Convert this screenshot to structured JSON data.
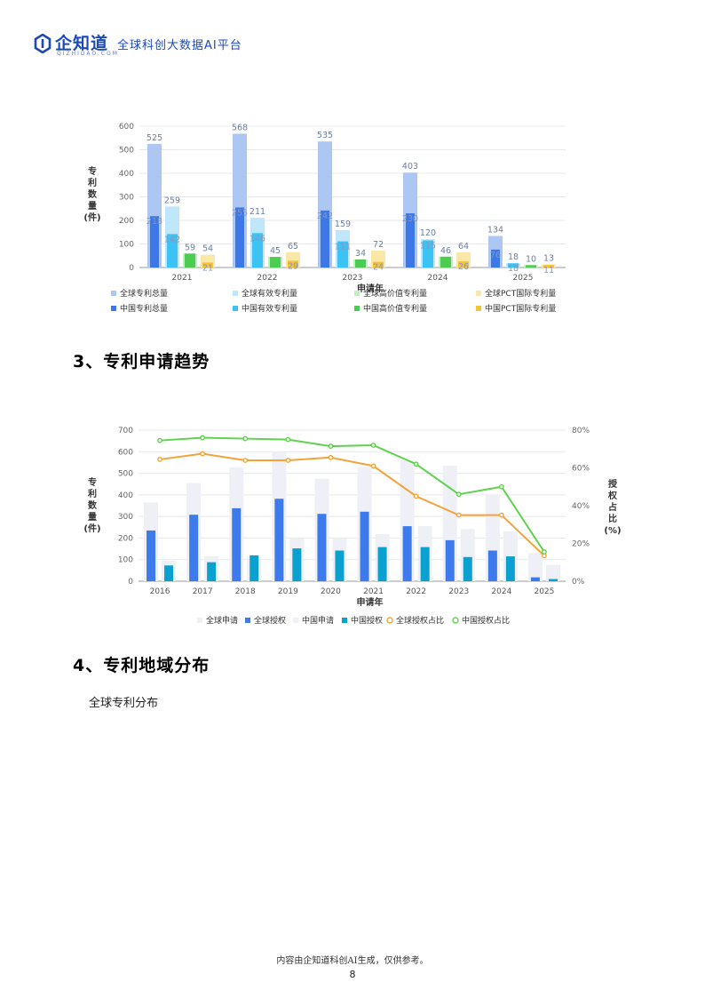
{
  "header": {
    "logo_name": "企知道",
    "logo_sub": "QIZHIDAO.COM",
    "slogan": "全球科创大数据AI平台"
  },
  "sections": {
    "trend_title": "3、专利申请趋势",
    "region_title": "4、专利地域分布",
    "global_subtitle": "全球专利分布"
  },
  "footer": {
    "note": "内容由企知道科创AI生成，仅供参考。",
    "page_number": "8"
  },
  "colors": {
    "global_total": "#adc6f2",
    "cn_total": "#3c78e8",
    "global_valid": "#bfe6fb",
    "cn_valid": "#3cc3f3",
    "global_high": "#c5ecc4",
    "cn_high": "#4ccc50",
    "global_pct": "#fbe7a6",
    "cn_pct": "#f4c33a",
    "grey_bar": "#eef0f5",
    "blue_bar": "#3d7bea",
    "teal_bar": "#0aa0cf",
    "orange_line": "#f4a33a",
    "green_line": "#5fd24f"
  },
  "chart_data": [
    {
      "type": "bar",
      "xlabel": "申请年",
      "ylabel": "专利\n数量\n(件)",
      "ylabel_chars": [
        "专",
        "利",
        "数",
        "量",
        "(件)"
      ],
      "ylim": [
        0,
        600
      ],
      "yticks": [
        "0",
        "100",
        "200",
        "300",
        "400",
        "500",
        "600"
      ],
      "categories": [
        "2021",
        "2022",
        "2023",
        "2024",
        "2025"
      ],
      "series": [
        {
          "name": "全球专利总量",
          "color_key": "global_total",
          "values": [
            525,
            568,
            535,
            403,
            134
          ]
        },
        {
          "name": "中国专利总量",
          "color_key": "cn_total",
          "values": [
            218,
            255,
            242,
            230,
            76
          ]
        },
        {
          "name": "全球有效专利量",
          "color_key": "global_valid",
          "values": [
            259,
            211,
            159,
            120,
            18
          ]
        },
        {
          "name": "中国有效专利量",
          "color_key": "cn_valid",
          "values": [
            142,
            146,
            111,
            115,
            18
          ]
        },
        {
          "name": "全球高价值专利量",
          "color_key": "global_high",
          "values": [
            59,
            45,
            34,
            46,
            10
          ]
        },
        {
          "name": "中国高价值专利量",
          "color_key": "cn_high",
          "values": [
            59,
            45,
            34,
            46,
            10
          ]
        },
        {
          "name": "全球PCT国际专利量",
          "color_key": "global_pct",
          "values": [
            54,
            65,
            72,
            64,
            13
          ]
        },
        {
          "name": "中国PCT国际专利量",
          "color_key": "cn_pct",
          "values": [
            21,
            29,
            24,
            26,
            11
          ]
        }
      ],
      "legend_rows": [
        [
          "全球专利总量",
          "全球有效专利量",
          "全球高价值专利量",
          "全球PCT国际专利量"
        ],
        [
          "中国专利总量",
          "中国有效专利量",
          "中国高价值专利量",
          "中国PCT国际专利量"
        ]
      ],
      "legend_color_keys": [
        [
          "global_total",
          "global_valid",
          "global_high",
          "global_pct"
        ],
        [
          "cn_total",
          "cn_valid",
          "cn_high",
          "cn_pct"
        ]
      ],
      "legend_placement": "bottom"
    },
    {
      "type": "bar",
      "xlabel": "申请年",
      "ylabel_chars": [
        "专",
        "利",
        "数",
        "量",
        "(件)"
      ],
      "y2label_chars": [
        "授",
        "权",
        "占",
        "比",
        "(%)"
      ],
      "ylim": [
        0,
        700
      ],
      "yticks": [
        "0",
        "100",
        "200",
        "300",
        "400",
        "500",
        "600",
        "700"
      ],
      "y2lim": [
        0,
        80
      ],
      "y2ticks": [
        "0%",
        "20%",
        "40%",
        "60%",
        "80%"
      ],
      "categories": [
        "2016",
        "2017",
        "2018",
        "2019",
        "2020",
        "2021",
        "2022",
        "2023",
        "2024",
        "2025"
      ],
      "series": [
        {
          "name": "全球申请",
          "kind": "bar",
          "color_key": "grey_bar",
          "values": [
            365,
            455,
            528,
            600,
            475,
            530,
            560,
            535,
            400,
            130
          ]
        },
        {
          "name": "全球授权",
          "kind": "bar",
          "color_key": "blue_bar",
          "values": [
            235,
            308,
            338,
            382,
            312,
            322,
            255,
            190,
            142,
            18
          ]
        },
        {
          "name": "中国申请",
          "kind": "bar",
          "color_key": "grey_bar",
          "values": [
            95,
            115,
            115,
            200,
            200,
            218,
            255,
            242,
            230,
            76
          ]
        },
        {
          "name": "中国授权",
          "kind": "bar",
          "color_key": "teal_bar",
          "values": [
            73,
            88,
            120,
            152,
            142,
            158,
            158,
            112,
            115,
            10
          ]
        },
        {
          "name": "全球授权占比",
          "kind": "line",
          "axis": "y2",
          "color_key": "orange_line",
          "values": [
            64.5,
            67.5,
            64,
            64,
            65.5,
            61,
            45,
            35,
            35,
            13.5
          ]
        },
        {
          "name": "中国授权占比",
          "kind": "line",
          "axis": "y2",
          "color_key": "green_line",
          "values": [
            74.5,
            76,
            75.5,
            75,
            71.5,
            72,
            62,
            46,
            50,
            15.5
          ]
        }
      ],
      "legend_placement": "bottom"
    }
  ]
}
